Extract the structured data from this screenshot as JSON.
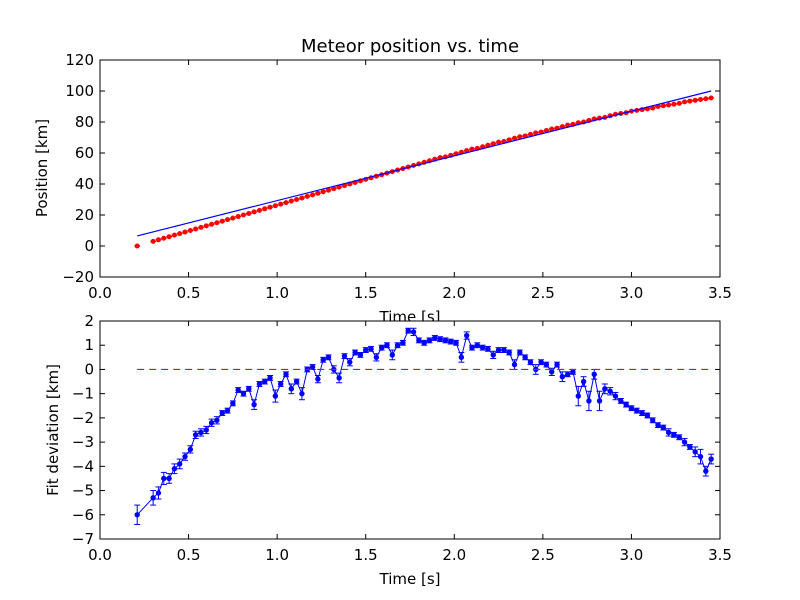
{
  "chart_data": [
    {
      "type": "scatter",
      "title": "Meteor position vs. time",
      "xlabel": "Time [s]",
      "ylabel": "Position [km]",
      "xlim": [
        0.0,
        3.5
      ],
      "ylim": [
        -20,
        120
      ],
      "xticks": [
        "0.0",
        "0.5",
        "1.0",
        "1.5",
        "2.0",
        "2.5",
        "3.0",
        "3.5"
      ],
      "yticks": [
        "−20",
        "0",
        "20",
        "40",
        "60",
        "80",
        "100",
        "120"
      ],
      "colors": {
        "points": "#ff0000",
        "fit": "#0000ff"
      },
      "series": [
        {
          "kind": "points",
          "x": [
            0.21,
            0.3,
            0.33,
            0.36,
            0.39,
            0.42,
            0.45,
            0.48,
            0.51,
            0.54,
            0.57,
            0.6,
            0.63,
            0.66,
            0.69,
            0.72,
            0.75,
            0.78,
            0.81,
            0.84,
            0.87,
            0.9,
            0.93,
            0.96,
            0.99,
            1.02,
            1.05,
            1.08,
            1.11,
            1.14,
            1.17,
            1.2,
            1.23,
            1.26,
            1.29,
            1.32,
            1.35,
            1.38,
            1.41,
            1.44,
            1.47,
            1.5,
            1.53,
            1.56,
            1.59,
            1.62,
            1.65,
            1.68,
            1.71,
            1.74,
            1.77,
            1.8,
            1.83,
            1.86,
            1.89,
            1.92,
            1.95,
            1.98,
            2.01,
            2.04,
            2.07,
            2.1,
            2.13,
            2.16,
            2.19,
            2.22,
            2.25,
            2.28,
            2.31,
            2.34,
            2.37,
            2.4,
            2.43,
            2.46,
            2.49,
            2.52,
            2.55,
            2.58,
            2.61,
            2.64,
            2.67,
            2.7,
            2.73,
            2.76,
            2.79,
            2.82,
            2.85,
            2.88,
            2.91,
            2.94,
            2.97,
            3.0,
            3.03,
            3.06,
            3.09,
            3.12,
            3.15,
            3.18,
            3.21,
            3.24,
            3.27,
            3.3,
            3.33,
            3.36,
            3.39,
            3.42,
            3.45
          ],
          "y": [
            0,
            3,
            4,
            5,
            6,
            7,
            8,
            9,
            10,
            11,
            12,
            13,
            14,
            15,
            16,
            17,
            18,
            19,
            20,
            21,
            22,
            23,
            24,
            25,
            26,
            27,
            28,
            29,
            30,
            31,
            32,
            33,
            34,
            35,
            36,
            37,
            38,
            39,
            40,
            41,
            42,
            43,
            44,
            45,
            46,
            47,
            48,
            49,
            50,
            51,
            52,
            53,
            54,
            55,
            56,
            57,
            57.5,
            58.5,
            59.5,
            60.5,
            61.5,
            62.5,
            63,
            64,
            65,
            66,
            67,
            67.5,
            68.5,
            69.5,
            70.5,
            71,
            72,
            73,
            73.5,
            74.5,
            75.5,
            76,
            77,
            78,
            78.5,
            79.5,
            80,
            81,
            82,
            82.5,
            83,
            84,
            85,
            85.5,
            86,
            87,
            87.5,
            88,
            88.5,
            89,
            90,
            90.5,
            91,
            91.5,
            92,
            93,
            93.5,
            94,
            94.5,
            95,
            95.5
          ]
        },
        {
          "kind": "fit-line",
          "x": [
            0.21,
            3.45
          ],
          "y": [
            6.5,
            100
          ]
        }
      ]
    },
    {
      "type": "line",
      "xlabel": "Time [s]",
      "ylabel": "Fit deviation [km]",
      "xlim": [
        0.0,
        3.5
      ],
      "ylim": [
        -7,
        2
      ],
      "xticks": [
        "0.0",
        "0.5",
        "1.0",
        "1.5",
        "2.0",
        "2.5",
        "3.0",
        "3.5"
      ],
      "yticks": [
        "−7",
        "−6",
        "−5",
        "−4",
        "−3",
        "−2",
        "−1",
        "0",
        "1",
        "2"
      ],
      "colors": {
        "series": "#0000ff",
        "zero-line": "#ff0000"
      },
      "series": [
        {
          "kind": "errorbar-line",
          "x": [
            0.21,
            0.3,
            0.33,
            0.36,
            0.39,
            0.42,
            0.45,
            0.48,
            0.51,
            0.54,
            0.57,
            0.6,
            0.63,
            0.66,
            0.69,
            0.72,
            0.75,
            0.78,
            0.81,
            0.84,
            0.87,
            0.9,
            0.93,
            0.96,
            0.99,
            1.02,
            1.05,
            1.08,
            1.11,
            1.14,
            1.17,
            1.2,
            1.23,
            1.26,
            1.29,
            1.32,
            1.35,
            1.38,
            1.41,
            1.44,
            1.47,
            1.5,
            1.53,
            1.56,
            1.59,
            1.62,
            1.65,
            1.68,
            1.71,
            1.74,
            1.77,
            1.8,
            1.83,
            1.86,
            1.89,
            1.92,
            1.95,
            1.98,
            2.01,
            2.04,
            2.07,
            2.1,
            2.13,
            2.16,
            2.19,
            2.22,
            2.25,
            2.28,
            2.31,
            2.34,
            2.37,
            2.4,
            2.43,
            2.46,
            2.49,
            2.52,
            2.55,
            2.58,
            2.61,
            2.64,
            2.67,
            2.7,
            2.73,
            2.76,
            2.79,
            2.82,
            2.85,
            2.88,
            2.91,
            2.94,
            2.97,
            3.0,
            3.03,
            3.06,
            3.09,
            3.12,
            3.15,
            3.18,
            3.21,
            3.24,
            3.27,
            3.3,
            3.33,
            3.36,
            3.39,
            3.42,
            3.45
          ],
          "y": [
            -6.0,
            -5.3,
            -5.1,
            -4.5,
            -4.5,
            -4.1,
            -3.9,
            -3.6,
            -3.3,
            -2.7,
            -2.6,
            -2.5,
            -2.2,
            -2.1,
            -1.8,
            -1.7,
            -1.4,
            -0.85,
            -1.0,
            -0.8,
            -1.45,
            -0.6,
            -0.5,
            -0.35,
            -1.1,
            -0.6,
            -0.2,
            -0.8,
            -0.5,
            -1.0,
            0.0,
            0.1,
            -0.4,
            0.4,
            0.5,
            0.0,
            -0.35,
            0.55,
            0.3,
            0.7,
            0.6,
            0.8,
            0.85,
            0.5,
            0.9,
            1.0,
            0.6,
            1.0,
            1.1,
            1.6,
            1.55,
            1.2,
            1.1,
            1.2,
            1.3,
            1.25,
            1.2,
            1.15,
            1.1,
            0.5,
            1.4,
            0.9,
            1.0,
            0.9,
            0.85,
            0.6,
            0.8,
            0.8,
            0.7,
            0.2,
            0.7,
            0.5,
            0.3,
            0.0,
            0.3,
            0.2,
            -0.1,
            0.2,
            -0.3,
            -0.2,
            -0.1,
            -1.1,
            -0.5,
            -1.3,
            -0.2,
            -1.3,
            -0.8,
            -0.9,
            -1.1,
            -1.3,
            -1.45,
            -1.6,
            -1.7,
            -1.8,
            -1.9,
            -2.1,
            -2.3,
            -2.4,
            -2.6,
            -2.7,
            -2.8,
            -3.0,
            -3.2,
            -3.4,
            -3.6,
            -4.2,
            -3.7
          ],
          "yerr": [
            0.4,
            0.3,
            0.25,
            0.25,
            0.2,
            0.2,
            0.2,
            0.15,
            0.15,
            0.15,
            0.15,
            0.15,
            0.15,
            0.15,
            0.1,
            0.1,
            0.1,
            0.1,
            0.1,
            0.1,
            0.2,
            0.1,
            0.1,
            0.1,
            0.25,
            0.1,
            0.1,
            0.2,
            0.1,
            0.25,
            0.1,
            0.1,
            0.15,
            0.1,
            0.1,
            0.15,
            0.2,
            0.1,
            0.15,
            0.1,
            0.1,
            0.1,
            0.1,
            0.15,
            0.1,
            0.1,
            0.2,
            0.1,
            0.1,
            0.1,
            0.15,
            0.1,
            0.1,
            0.1,
            0.1,
            0.1,
            0.1,
            0.1,
            0.1,
            0.2,
            0.15,
            0.1,
            0.1,
            0.1,
            0.1,
            0.15,
            0.1,
            0.1,
            0.1,
            0.2,
            0.1,
            0.1,
            0.1,
            0.2,
            0.1,
            0.1,
            0.15,
            0.1,
            0.2,
            0.1,
            0.1,
            0.4,
            0.2,
            0.4,
            0.2,
            0.4,
            0.2,
            0.15,
            0.15,
            0.1,
            0.1,
            0.1,
            0.1,
            0.1,
            0.1,
            0.1,
            0.1,
            0.1,
            0.15,
            0.1,
            0.1,
            0.15,
            0.1,
            0.2,
            0.3,
            0.2,
            0.2
          ]
        },
        {
          "kind": "zero-line",
          "x": [
            0.21,
            3.45
          ],
          "y": [
            0,
            0
          ]
        }
      ]
    }
  ]
}
